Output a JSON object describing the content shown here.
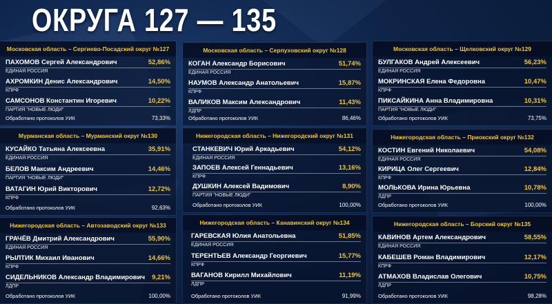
{
  "title": "ОКРУГА 127 — 135",
  "districts": [
    {
      "header": "Московская область – Сергиево-Посадский округ №127",
      "candidates": [
        {
          "name": "ПАХОМОВ Сергей Александрович",
          "percent": "52,86%",
          "party": "ЕДИНАЯ РОССИЯ"
        },
        {
          "name": "АХРОМКИН Денис Александрович",
          "percent": "14,50%",
          "party": "КПРФ"
        },
        {
          "name": "САМСОНОВ Константин Игоревич",
          "percent": "10,22%",
          "party": "ПАРТИЯ \"НОВЫЕ ЛЮДИ\""
        }
      ],
      "footer_label": "Обработано протоколов УИК",
      "footer_value": "73,33%"
    },
    {
      "header": "Московская область – Серпуховский округ №128",
      "candidates": [
        {
          "name": "КОГАН Александр Борисович",
          "percent": "51,74%",
          "party": "ЕДИНАЯ РОССИЯ"
        },
        {
          "name": "НАУМОВ Александр Анатольевич",
          "percent": "15,87%",
          "party": "КПРФ"
        },
        {
          "name": "ВАЛИКОВ Максим Александрович",
          "percent": "11,43%",
          "party": "ЛДПР"
        }
      ],
      "footer_label": "Обработано протоколов УИК",
      "footer_value": "86,46%"
    },
    {
      "header": "Московская область – Щелковский округ №129",
      "candidates": [
        {
          "name": "БУЛГАКОВ Андрей Алексеевич",
          "percent": "56,23%",
          "party": "ЕДИНАЯ РОССИЯ"
        },
        {
          "name": "МОКРИНСКАЯ Елена Федоровна",
          "percent": "10,47%",
          "party": "КПРФ"
        },
        {
          "name": "ПИКСАЙКИНА Анна Владимировна",
          "percent": "10,31%",
          "party": "ПАРТИЯ \"НОВЫЕ ЛЮДИ\""
        }
      ],
      "footer_label": "Обработано протоколов УИК",
      "footer_value": "73,75%"
    },
    {
      "header": "Мурманская область – Мурманский округ №130",
      "candidates": [
        {
          "name": "КУСАЙКО Татьяна Алексеевна",
          "percent": "35,91%",
          "party": "ЕДИНАЯ РОССИЯ"
        },
        {
          "name": "БЕЛОВ Максим Андреевич",
          "percent": "14,46%",
          "party": "ПАРТИЯ \"НОВЫЕ ЛЮДИ\""
        },
        {
          "name": "ВАТАГИН Юрий Викторович",
          "percent": "12,72%",
          "party": "КПРФ"
        }
      ],
      "footer_label": "Обработано протоколов УИК",
      "footer_value": "92,63%"
    },
    {
      "header": "Нижегородская область – Нижегородский округ №131",
      "candidates": [
        {
          "name": "СТАНКЕВИЧ Юрий Аркадьевич",
          "percent": "54,12%",
          "party": "ЕДИНАЯ РОССИЯ"
        },
        {
          "name": "ЗАПОЕВ Алексей Геннадьевич",
          "percent": "13,16%",
          "party": "КПРФ"
        },
        {
          "name": "ДУШКИН Алексей Вадимович",
          "percent": "8,90%",
          "party": "ПАРТИЯ \"НОВЫЕ ЛЮДИ\""
        }
      ],
      "footer_label": "Обработано протоколов УИК",
      "footer_value": "100,00%"
    },
    {
      "header": "Нижегородская область – Приокский округ №132",
      "candidates": [
        {
          "name": "КОСТИН Евгений Николаевич",
          "percent": "54,08%",
          "party": "ЕДИНАЯ РОССИЯ"
        },
        {
          "name": "КИРИЦА Олег Сергеевич",
          "percent": "12,84%",
          "party": "КПРФ"
        },
        {
          "name": "МОЛЬКОВА Ирина Юрьевна",
          "percent": "10,78%",
          "party": "ЛДПР"
        }
      ],
      "footer_label": "Обработано протоколов УИК",
      "footer_value": "100,00%"
    },
    {
      "header": "Нижегородская область – Автозаводский округ №133",
      "candidates": [
        {
          "name": "ГРАЧЁВ Дмитрий Александрович",
          "percent": "55,90%",
          "party": "ЕДИНАЯ РОССИЯ"
        },
        {
          "name": "РЫЛТИК Михаил Иванович",
          "percent": "14,66%",
          "party": "КПРФ"
        },
        {
          "name": "СИДЕЛЬНИКОВ Александр Владимирович",
          "percent": "9,21%",
          "party": "ЛДПР"
        }
      ],
      "footer_label": "Обработано протоколов УИК",
      "footer_value": "100,00%"
    },
    {
      "header": "Нижегородская область – Канавинский округ №134",
      "candidates": [
        {
          "name": "ГАРЕВСКАЯ Юлия Анатольевна",
          "percent": "51,85%",
          "party": "ЕДИНАЯ РОССИЯ"
        },
        {
          "name": "ТЕРЕНТЬЕВ Александр Георгиевич",
          "percent": "15,77%",
          "party": "КПРФ"
        },
        {
          "name": "ВАГАНОВ Кирилл Михайлович",
          "percent": "11,19%",
          "party": "ЛДПР"
        }
      ],
      "footer_label": "Обработано протоколов УИК",
      "footer_value": "91,99%"
    },
    {
      "header": "Нижегородская область – Борский округ №135",
      "candidates": [
        {
          "name": "КАВИНОВ Артем Александрович",
          "percent": "58,55%",
          "party": "ЕДИНАЯ РОССИЯ"
        },
        {
          "name": "КАБЕШЕВ Роман Владимирович",
          "percent": "12,17%",
          "party": "КПРФ"
        },
        {
          "name": "АТМАХОВ Владислав Олегович",
          "percent": "10,75%",
          "party": "ЛДПР"
        }
      ],
      "footer_label": "Обработано протоколов УИК",
      "footer_value": "98,28%"
    }
  ]
}
